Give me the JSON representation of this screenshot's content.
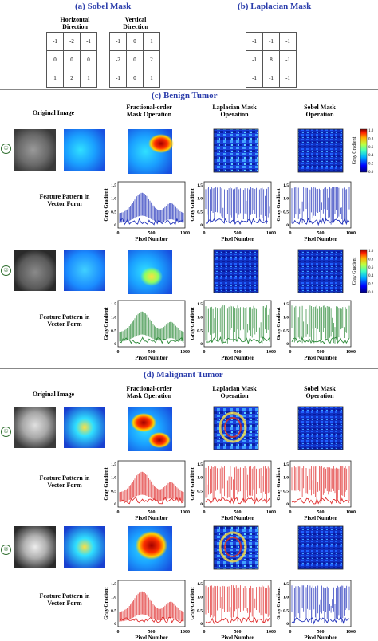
{
  "sobel": {
    "title": "(a) Sobel Mask",
    "horizontal_label": "Horizontal Direction",
    "vertical_label": "Vertical Direction",
    "horizontal": [
      [
        "-1",
        "-2",
        "-1"
      ],
      [
        "0",
        "0",
        "0"
      ],
      [
        "1",
        "2",
        "1"
      ]
    ],
    "vertical": [
      [
        "-1",
        "0",
        "1"
      ],
      [
        "-2",
        "0",
        "2"
      ],
      [
        "-1",
        "0",
        "1"
      ]
    ]
  },
  "laplacian": {
    "title": "(b) Laplacian Mask",
    "mask": [
      [
        "-1",
        "-1",
        "-1"
      ],
      [
        "-1",
        "8",
        "-1"
      ],
      [
        "-1",
        "-1",
        "-1"
      ]
    ]
  },
  "benign": {
    "title": "(c) Benign Tumor",
    "col_original": "Original Image",
    "col_frac": "Fractional-order Mask Operation",
    "col_lap": "Laplacian Mask Operation",
    "col_sobel": "Sobel Mask Operation",
    "sample1": "①",
    "sample2": "②",
    "feature_label": "Feature Pattern in Vector Form"
  },
  "malignant": {
    "title": "(d) Malignant Tumor",
    "col_original": "Original Image",
    "col_frac": "Fractional-order Mask Operation",
    "col_lap": "Laplacian Mask Operation",
    "col_sobel": "Sobel Mask Operation",
    "sample1": "①",
    "sample2": "②",
    "feature_label": "Feature Pattern in Vector Form"
  },
  "colorbar": {
    "label": "Gray Gradient",
    "ticks": [
      "1.0",
      "0.8",
      "0.6",
      "0.4",
      "0.2",
      "0.0"
    ]
  },
  "plot_axes": {
    "xlabel": "Pixel Number",
    "ylabel": "Gray Gradient",
    "xticks": [
      "0",
      "500",
      "1000"
    ],
    "yticks_frac": [
      "1.5",
      "1.0",
      "0.5",
      "0"
    ],
    "yticks_edge": [
      "1.5",
      "1.0",
      "0.5",
      "0"
    ]
  },
  "colors": {
    "header": "#2b3dab",
    "benign1": "#2233bb",
    "benign2": "#2e8b3a",
    "malignant1": "#e03030",
    "malignant2_frac": "#e03030",
    "malignant2_sobel": "#2233bb"
  }
}
